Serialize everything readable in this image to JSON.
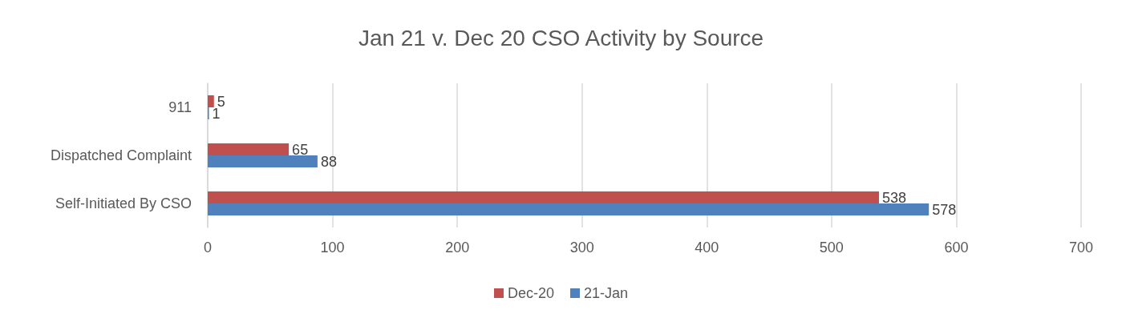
{
  "chart_data": {
    "type": "bar",
    "orientation": "horizontal",
    "title": "Jan 21 v. Dec 20 CSO Activity by Source",
    "categories": [
      "911",
      "Dispatched Complaint",
      "Self-Initiated By CSO"
    ],
    "series": [
      {
        "name": "Dec-20",
        "color": "#c0504d",
        "values": [
          5,
          65,
          538
        ]
      },
      {
        "name": "21-Jan",
        "color": "#4f81bd",
        "values": [
          1,
          88,
          578
        ]
      }
    ],
    "xlim": [
      0,
      700
    ],
    "xticks": [
      0,
      100,
      200,
      300,
      400,
      500,
      600,
      700
    ],
    "grid": "x",
    "legend": "bottom",
    "data_labels": true
  }
}
